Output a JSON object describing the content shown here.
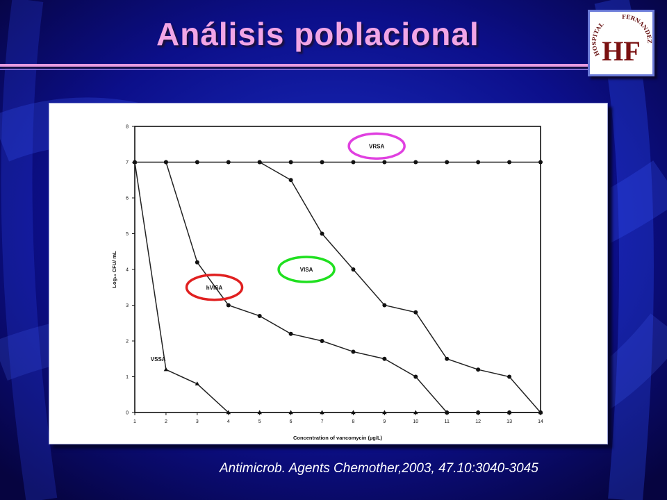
{
  "slide": {
    "title": "Análisis poblacional",
    "citation": "Antimicrob. Agents Chemother,2003, 47.10:3040-3045"
  },
  "logo": {
    "icon": "hospital-fernandez-logo",
    "arc_left": "HOSPITAL",
    "arc_right": "FERNANDEZ",
    "monogram": "HF"
  },
  "chart_data": {
    "type": "line",
    "xlabel": "Concentration of vancomycin (µg/L)",
    "ylabel": "Log₁₀ CFU/ mL",
    "xlim": [
      1,
      14
    ],
    "ylim": [
      0,
      8
    ],
    "xticks": [
      "1",
      "2",
      "3",
      "4",
      "5",
      "6",
      "7",
      "8",
      "9",
      "10",
      "11",
      "12",
      "13",
      "14"
    ],
    "yticks": [
      "0",
      "1",
      "2",
      "3",
      "4",
      "5",
      "6",
      "7",
      "8"
    ],
    "grid": false,
    "legend": "none",
    "series": [
      {
        "name": "VRSA",
        "marker": "circle",
        "x": [
          1,
          2,
          3,
          4,
          5,
          6,
          7,
          8,
          9,
          10,
          11,
          12,
          13,
          14
        ],
        "y": [
          7,
          7,
          7,
          7,
          7,
          7,
          7,
          7,
          7,
          7,
          7,
          7,
          7,
          7
        ]
      },
      {
        "name": "VISA",
        "marker": "circle",
        "x": [
          5,
          6,
          7,
          8,
          9,
          10,
          11,
          12,
          13,
          14
        ],
        "y": [
          7,
          6.5,
          5,
          4,
          3,
          2.8,
          1.5,
          1.2,
          1,
          0
        ]
      },
      {
        "name": "hVISA",
        "marker": "circle",
        "x": [
          2,
          3,
          4,
          5,
          6,
          7,
          8,
          9,
          10,
          11,
          12,
          13,
          14
        ],
        "y": [
          7,
          4.2,
          3,
          2.7,
          2.2,
          2,
          1.7,
          1.5,
          1,
          0,
          0,
          0,
          0
        ]
      },
      {
        "name": "VSSA",
        "marker": "triangle",
        "x": [
          1,
          2,
          3,
          4,
          5,
          6,
          7,
          8,
          9,
          10,
          11,
          12,
          13,
          14
        ],
        "y": [
          7,
          1.2,
          0.8,
          0,
          0,
          0,
          0,
          0,
          0,
          0,
          0,
          0,
          0,
          0
        ]
      }
    ],
    "annotations": [
      {
        "text": "VRSA",
        "x": 8.75,
        "y": 7.45,
        "ring_color": "#e040e0"
      },
      {
        "text": "VISA",
        "x": 6.5,
        "y": 4.0,
        "ring_color": "#20e020"
      },
      {
        "text": "hVISA",
        "x": 3.55,
        "y": 3.5,
        "ring_color": "#e02020"
      },
      {
        "text": "VSSA",
        "x": 1.75,
        "y": 1.5,
        "ring_color": ""
      }
    ]
  },
  "colors": {
    "background": "#0a0a6e",
    "title": "#f2a6e6",
    "rule": "#e69be0",
    "chart_ink": "#111111"
  }
}
